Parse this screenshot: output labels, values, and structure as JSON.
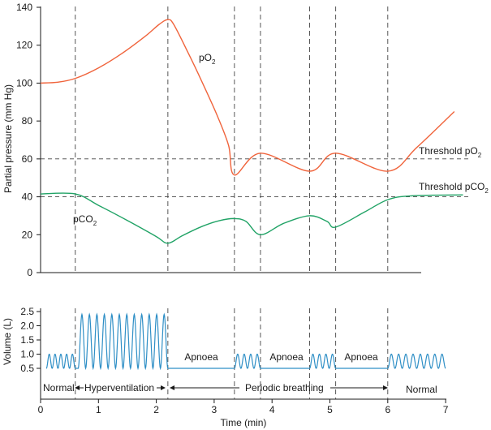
{
  "chart_data": [
    {
      "type": "line",
      "ylabel": "Partial pressure (mm Hg)",
      "ylim": [
        0,
        140
      ],
      "yticks": [
        "0",
        "20",
        "40",
        "60",
        "80",
        "100",
        "120",
        "140"
      ],
      "grid": false,
      "series": [
        {
          "name": "pO2",
          "label": "pO",
          "label_sub": "2",
          "color": "#f0643c",
          "points": [
            [
              0,
              100
            ],
            [
              0.3,
              100.5
            ],
            [
              0.6,
              102.5
            ],
            [
              1.0,
              108
            ],
            [
              1.4,
              115.5
            ],
            [
              1.8,
              124.5
            ],
            [
              2.05,
              131
            ],
            [
              2.2,
              133.5
            ],
            [
              2.3,
              131
            ],
            [
              2.55,
              116
            ],
            [
              2.8,
              100
            ],
            [
              3.05,
              83
            ],
            [
              3.25,
              67
            ],
            [
              3.35,
              51.5
            ],
            [
              3.8,
              63
            ],
            [
              4.65,
              53.5
            ],
            [
              5.1,
              63
            ],
            [
              6.0,
              53.5
            ],
            [
              6.5,
              66
            ],
            [
              7.15,
              85
            ]
          ]
        },
        {
          "name": "pCO2",
          "label": "pCO",
          "label_sub": "2",
          "color": "#21a366",
          "points": [
            [
              0,
              41.5
            ],
            [
              0.6,
              41.5
            ],
            [
              1.0,
              35.5
            ],
            [
              1.5,
              27.5
            ],
            [
              2.0,
              19
            ],
            [
              2.2,
              15.5
            ],
            [
              2.45,
              19.5
            ],
            [
              2.8,
              24.5
            ],
            [
              3.1,
              27.5
            ],
            [
              3.35,
              28.5
            ],
            [
              3.55,
              27
            ],
            [
              3.8,
              20
            ],
            [
              4.2,
              26
            ],
            [
              4.65,
              30
            ],
            [
              4.95,
              27
            ],
            [
              5.1,
              24
            ],
            [
              5.6,
              32
            ],
            [
              6.0,
              38.5
            ],
            [
              6.4,
              40.5
            ],
            [
              7.3,
              41
            ]
          ]
        }
      ],
      "thresholds": [
        {
          "name": "Threshold pO2",
          "label": "Threshold pO",
          "label_sub": "2",
          "value": 60
        },
        {
          "name": "Threshold pCO2",
          "label": "Threshold pCO",
          "label_sub": "2",
          "value": 40
        }
      ]
    },
    {
      "type": "line",
      "ylabel": "Volume (L)",
      "ylim": [
        0.5,
        2.5
      ],
      "yticks": [
        "0.5",
        "1.0",
        "1.5",
        "2.0",
        "2.5"
      ],
      "xlabel": "Time (min)",
      "xlim": [
        0,
        7
      ],
      "xticks": [
        "0",
        "1",
        "2",
        "3",
        "4",
        "5",
        "6",
        "7"
      ],
      "color": "#2f8fc6",
      "breathing_segments": [
        {
          "start": 0.1,
          "end": 0.6,
          "min": 0.5,
          "max": 1.0,
          "cycles": 5
        },
        {
          "start": 0.65,
          "end": 2.2,
          "min": 0.5,
          "max": 2.4,
          "cycles": 12
        },
        {
          "start": 3.35,
          "end": 3.8,
          "min": 0.5,
          "max": 1.0,
          "cycles": 4
        },
        {
          "start": 4.65,
          "end": 5.1,
          "min": 0.5,
          "max": 1.0,
          "cycles": 4
        },
        {
          "start": 6.0,
          "end": 7.0,
          "min": 0.5,
          "max": 1.0,
          "cycles": 8
        }
      ],
      "apnoea_labels": [
        "Apnoea",
        "Apnoea",
        "Apnoea"
      ],
      "phases": {
        "normal_start": "Normal",
        "hyperventilation": "Hyperventilation",
        "periodic_breathing": "Periodic breathing",
        "normal_end": "Normal"
      }
    }
  ],
  "vertical_markers": [
    0.6,
    2.2,
    3.35,
    3.8,
    4.65,
    5.1,
    6.0
  ]
}
